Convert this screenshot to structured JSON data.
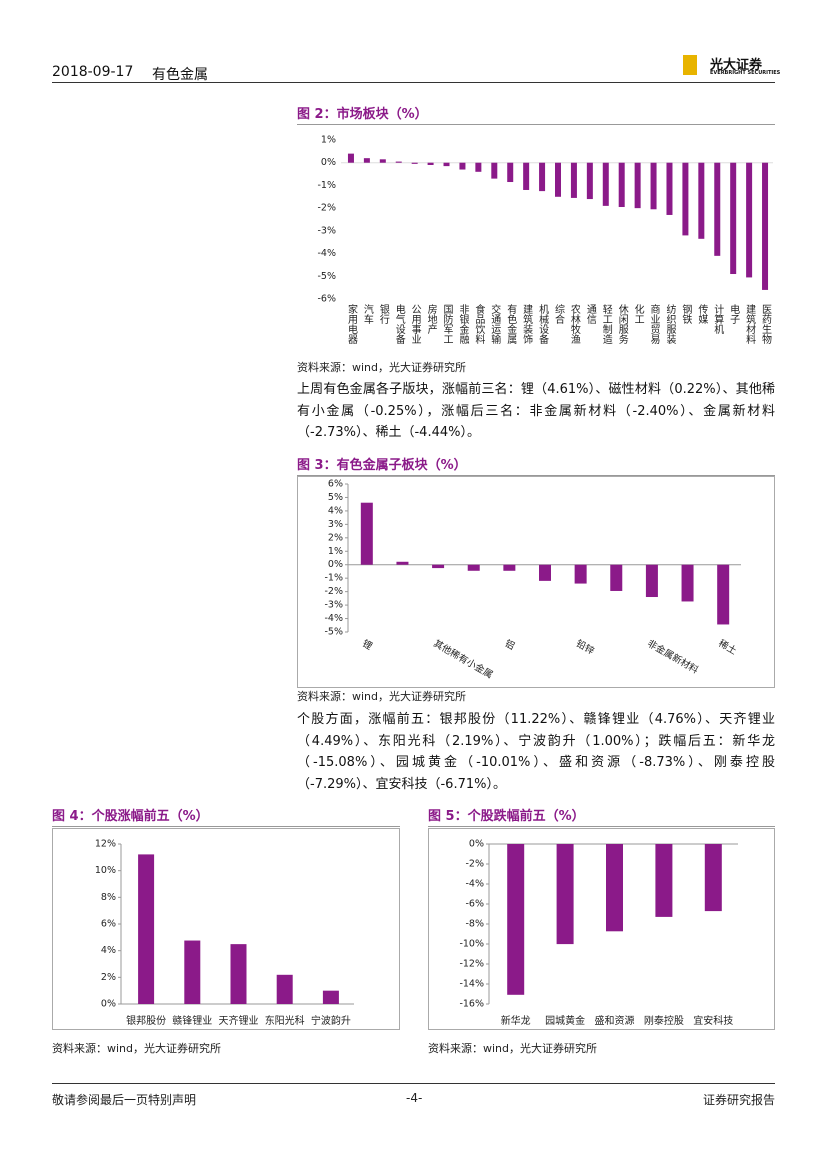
{
  "header": {
    "date": "2018-09-17",
    "section": "有色金属",
    "logo_name": "光大证券",
    "logo_sub": "EVERBRIGHT SECURITIES"
  },
  "figures": [
    {
      "title": "图 2：市场板块（%）",
      "source": "资料来源：wind，光大证券研究所",
      "chart_data": {
        "type": "bar",
        "color": "#8b1a89",
        "categories": [
          "家用电器",
          "汽车",
          "银行",
          "电气设备",
          "公用事业",
          "房地产",
          "国防军工",
          "非银金融",
          "食品饮料",
          "交通运输",
          "有色金属",
          "建筑装饰",
          "机械设备",
          "综合",
          "农林牧渔",
          "通信",
          "轻工制造",
          "休闲服务",
          "化工",
          "商业贸易",
          "纺织服装",
          "钢铁",
          "传媒",
          "计算机",
          "电子",
          "建筑材料",
          "医药生物"
        ],
        "values": [
          0.4,
          0.2,
          0.15,
          0.05,
          -0.05,
          -0.1,
          -0.15,
          -0.3,
          -0.4,
          -0.7,
          -0.85,
          -1.2,
          -1.25,
          -1.5,
          -1.55,
          -1.6,
          -1.9,
          -1.95,
          -2.0,
          -2.05,
          -2.3,
          -3.2,
          -3.35,
          -4.1,
          -4.9,
          -5.05,
          -5.6
        ],
        "ylim": [
          -6,
          1
        ],
        "yticks": [
          {
            "value": 1,
            "label": "1%"
          },
          {
            "value": 0,
            "label": "0%"
          },
          {
            "value": -1,
            "label": "-1%"
          },
          {
            "value": -2,
            "label": "-2%"
          },
          {
            "value": -3,
            "label": "-3%"
          },
          {
            "value": -4,
            "label": "-4%"
          },
          {
            "value": -5,
            "label": "-5%"
          },
          {
            "value": -6,
            "label": "-6%"
          }
        ]
      }
    },
    {
      "title": "图 3：有色金属子板块（%）",
      "source": "资料来源：wind，光大证券研究所",
      "chart_data": {
        "type": "bar",
        "color": "#8b1a89",
        "categories": [
          "锂",
          null,
          "其他稀有小金属",
          null,
          "铝",
          null,
          "铅锌",
          null,
          "非金属新材料",
          null,
          "稀土"
        ],
        "values": [
          4.61,
          0.22,
          -0.25,
          -0.45,
          -0.45,
          -1.2,
          -1.4,
          -1.95,
          -2.4,
          -2.73,
          -4.44
        ],
        "ylim": [
          -5,
          6
        ],
        "yticks": [
          {
            "value": 6,
            "label": "6%"
          },
          {
            "value": 5,
            "label": "5%"
          },
          {
            "value": 4,
            "label": "4%"
          },
          {
            "value": 3,
            "label": "3%"
          },
          {
            "value": 2,
            "label": "2%"
          },
          {
            "value": 1,
            "label": "1%"
          },
          {
            "value": 0,
            "label": "0%"
          },
          {
            "value": -1,
            "label": "-1%"
          },
          {
            "value": -2,
            "label": "-2%"
          },
          {
            "value": -3,
            "label": "-3%"
          },
          {
            "value": -4,
            "label": "-4%"
          },
          {
            "value": -5,
            "label": "-5%"
          }
        ]
      }
    },
    {
      "title": "图 4：个股涨幅前五（%）",
      "source": "资料来源：wind，光大证券研究所",
      "chart_data": {
        "type": "bar",
        "color": "#8b1a89",
        "categories": [
          "银邦股份",
          "赣锋锂业",
          "天齐锂业",
          "东阳光科",
          "宁波韵升"
        ],
        "values": [
          11.22,
          4.76,
          4.49,
          2.19,
          1.0
        ],
        "ylim": [
          0,
          12
        ],
        "yticks": [
          {
            "value": 12,
            "label": "12%"
          },
          {
            "value": 10,
            "label": "10%"
          },
          {
            "value": 8,
            "label": "8%"
          },
          {
            "value": 6,
            "label": "6%"
          },
          {
            "value": 4,
            "label": "4%"
          },
          {
            "value": 2,
            "label": "2%"
          },
          {
            "value": 0,
            "label": "0%"
          }
        ]
      }
    },
    {
      "title": "图 5：个股跌幅前五（%）",
      "source": "资料来源：wind，光大证券研究所",
      "chart_data": {
        "type": "bar",
        "color": "#8b1a89",
        "categories": [
          "新华龙",
          "园城黄金",
          "盛和资源",
          "刚泰控股",
          "宜安科技"
        ],
        "values": [
          -15.08,
          -10.01,
          -8.73,
          -7.29,
          -6.71
        ],
        "ylim": [
          -16,
          0
        ],
        "yticks": [
          {
            "value": 0,
            "label": "0%"
          },
          {
            "value": -2,
            "label": "-2%"
          },
          {
            "value": -4,
            "label": "-4%"
          },
          {
            "value": -6,
            "label": "-6%"
          },
          {
            "value": -8,
            "label": "-8%"
          },
          {
            "value": -10,
            "label": "-10%"
          },
          {
            "value": -12,
            "label": "-12%"
          },
          {
            "value": -14,
            "label": "-14%"
          },
          {
            "value": -16,
            "label": "-16%"
          }
        ]
      }
    }
  ],
  "paragraphs": [
    "上周有色金属各子版块，涨幅前三名：锂（4.61%）、磁性材料（0.22%）、其他稀有小金属（-0.25%），涨幅后三名：非金属新材料（-2.40%）、金属新材料（-2.73%）、稀土（-4.44%）。",
    "个股方面，涨幅前五：银邦股份（11.22%）、赣锋锂业（4.76%）、天齐锂业（4.49%）、东阳光科（2.19%）、宁波韵升（1.00%）；跌幅后五：新华龙（-15.08%）、园城黄金（-10.01%）、盛和资源（-8.73%）、刚泰控股（-7.29%）、宜安科技（-6.71%）。"
  ],
  "footer": {
    "disclaimer": "敬请参阅最后一页特别声明",
    "page": "-4-",
    "report_type": "证券研究报告"
  }
}
